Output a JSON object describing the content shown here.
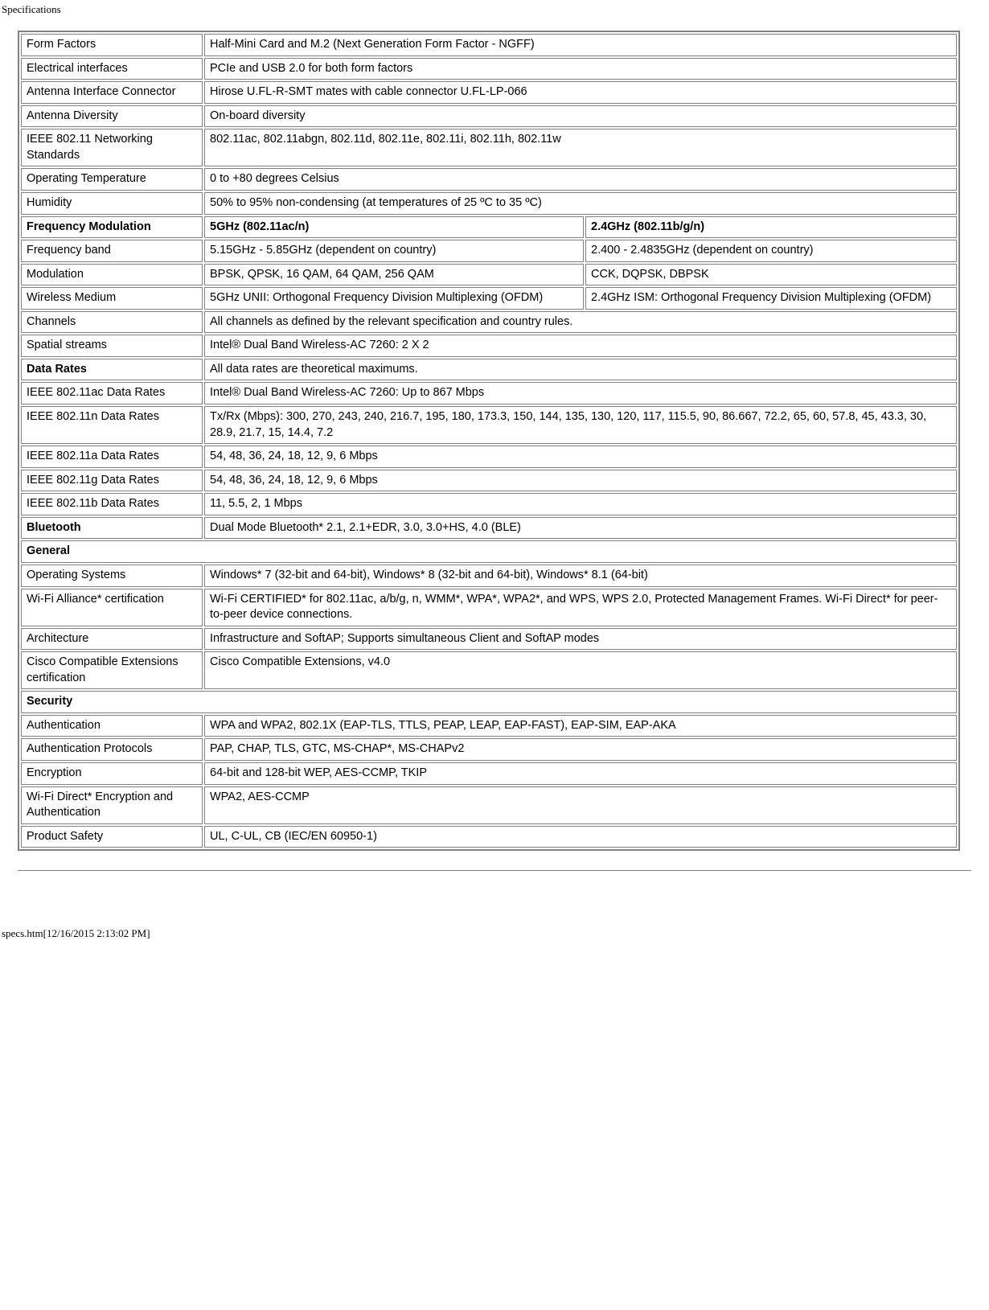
{
  "page_title": "Specifications",
  "footer": "specs.htm[12/16/2015 2:13:02 PM]",
  "rows": [
    {
      "k": "Form Factors",
      "v": "Half-Mini Card and M.2 (Next Generation Form Factor - NGFF)"
    },
    {
      "k": "Electrical interfaces",
      "v": "PCIe and USB 2.0 for both form factors"
    },
    {
      "k": "Antenna Interface Connector",
      "v": "Hirose U.FL-R-SMT mates with cable connector U.FL-LP-066"
    },
    {
      "k": "Antenna Diversity",
      "v": "On-board diversity"
    },
    {
      "k": "IEEE 802.11 Networking Standards",
      "v": "802.11ac, 802.11abgn, 802.11d, 802.11e, 802.11i, 802.11h, 802.11w"
    },
    {
      "k": "Operating Temperature",
      "v": "0 to +80 degrees Celsius"
    },
    {
      "k": "Humidity",
      "v": "50% to 95% non-condensing (at temperatures of 25 ºC to 35 ºC)"
    }
  ],
  "freq": {
    "header": {
      "k": "Frequency Modulation",
      "c1": "5GHz (802.11ac/n)",
      "c2": "2.4GHz (802.11b/g/n)"
    },
    "band": {
      "k": "Frequency band",
      "c1": "5.15GHz - 5.85GHz (dependent on country)",
      "c2": "2.400 - 2.4835GHz (dependent on country)"
    },
    "mod": {
      "k": "Modulation",
      "c1": "BPSK, QPSK, 16 QAM, 64 QAM, 256 QAM",
      "c2": "CCK, DQPSK, DBPSK"
    },
    "med": {
      "k": "Wireless Medium",
      "c1": "5GHz UNII: Orthogonal Frequency Division Multiplexing (OFDM)",
      "c2": "2.4GHz ISM: Orthogonal Frequency Division Multiplexing (OFDM)"
    }
  },
  "rows2": [
    {
      "k": "Channels",
      "v": "All channels as defined by the relevant specification and country rules."
    },
    {
      "k": "Spatial streams",
      "v": "Intel® Dual Band Wireless-AC 7260: 2 X 2"
    }
  ],
  "rates": {
    "header": {
      "k": "Data Rates",
      "v": "All data rates are theoretical maximums."
    },
    "ac": {
      "k": "IEEE 802.11ac Data Rates",
      "v": "Intel® Dual Band Wireless-AC 7260: Up to 867 Mbps"
    },
    "n": {
      "k": "IEEE 802.11n Data Rates",
      "v": "Tx/Rx (Mbps): 300, 270, 243, 240, 216.7, 195, 180, 173.3, 150, 144, 135, 130, 120, 117, 115.5, 90, 86.667, 72.2, 65, 60, 57.8, 45, 43.3, 30, 28.9, 21.7, 15, 14.4, 7.2"
    },
    "a": {
      "k": "IEEE 802.11a Data Rates",
      "v": "54, 48, 36, 24, 18, 12, 9, 6 Mbps"
    },
    "g": {
      "k": "IEEE 802.11g Data Rates",
      "v": "54, 48, 36, 24, 18, 12, 9, 6 Mbps"
    },
    "b": {
      "k": "IEEE 802.11b Data Rates",
      "v": "11, 5.5, 2, 1 Mbps"
    }
  },
  "bt": {
    "k": "Bluetooth",
    "v": "Dual Mode Bluetooth* 2.1, 2.1+EDR, 3.0, 3.0+HS, 4.0 (BLE)"
  },
  "general_header": "General",
  "general": [
    {
      "k": "Operating Systems",
      "v": "Windows* 7 (32-bit and 64-bit), Windows* 8 (32-bit and 64-bit), Windows* 8.1 (64-bit)"
    },
    {
      "k": "Wi-Fi Alliance* certification",
      "v": "Wi-Fi CERTIFIED* for 802.11ac, a/b/g, n, WMM*, WPA*, WPA2*, and WPS, WPS 2.0, Protected Management Frames. Wi-Fi Direct* for peer-to-peer device connections."
    },
    {
      "k": "Architecture",
      "v": "Infrastructure and SoftAP; Supports simultaneous Client and SoftAP modes"
    },
    {
      "k": "Cisco Compatible Extensions certification",
      "v": "Cisco Compatible Extensions, v4.0"
    }
  ],
  "security_header": "Security",
  "security": [
    {
      "k": "Authentication",
      "v": "WPA and WPA2, 802.1X (EAP-TLS, TTLS, PEAP, LEAP, EAP-FAST), EAP-SIM, EAP-AKA"
    },
    {
      "k": "Authentication Protocols",
      "v": "PAP, CHAP, TLS, GTC, MS-CHAP*, MS-CHAPv2"
    },
    {
      "k": "Encryption",
      "v": "64-bit and 128-bit WEP, AES-CCMP, TKIP"
    },
    {
      "k": "Wi-Fi Direct* Encryption and Authentication",
      "v": "WPA2, AES-CCMP"
    },
    {
      "k": "Product Safety",
      "v": "UL, C-UL, CB (IEC/EN 60950-1)"
    }
  ]
}
